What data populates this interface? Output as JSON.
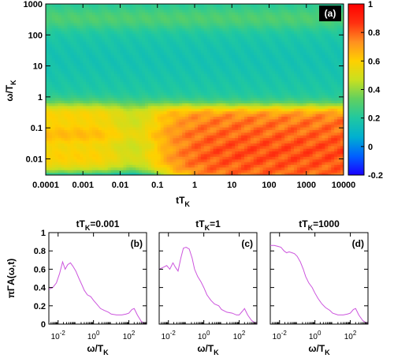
{
  "chart_data": [
    {
      "type": "heatmap",
      "panel_label": "(a)",
      "xlabel_main": "tT",
      "xlabel_sub": "K",
      "ylabel_main": "ω/T",
      "ylabel_sub": "K",
      "x_scale": "log",
      "y_scale": "log",
      "xlim": [
        0.0001,
        10000
      ],
      "ylim": [
        0.003,
        1000
      ],
      "x_ticks": [
        "0.0001",
        "0.001",
        "0.01",
        "0.1",
        "1",
        "10",
        "100",
        "1000",
        "10000"
      ],
      "y_ticks": [
        "0.01",
        "0.1",
        "1",
        "10",
        "100",
        "1000"
      ],
      "colorbar": {
        "range": [
          -0.2,
          1
        ],
        "ticks": [
          "-0.2",
          "0",
          "0.2",
          "0.4",
          "0.6",
          "0.8",
          "1"
        ],
        "colors": [
          "#1a00ff",
          "#0060ff",
          "#00b0d0",
          "#20c8a0",
          "#60d060",
          "#c8e020",
          "#ffd000",
          "#ff9020",
          "#ff3010",
          "#ff0000"
        ]
      }
    },
    {
      "type": "line",
      "title_main": "tT",
      "title_sub": "K",
      "title_value": "=0.001",
      "panel_label": "(b)",
      "ylabel": "πΓA(ω,t)",
      "xlabel_main": "ω/T",
      "xlabel_sub": "K",
      "x_scale": "log",
      "xlim": [
        0.003,
        1000
      ],
      "ylim": [
        0,
        1
      ],
      "y_ticks": [
        "0",
        "0.2",
        "0.4",
        "0.6",
        "0.8",
        "1"
      ],
      "x_ticks": [
        {
          "base": "10",
          "exp": "-2"
        },
        {
          "base": "10",
          "exp": "0"
        },
        {
          "base": "10",
          "exp": "2"
        }
      ],
      "line_color": "#cc55dd",
      "x": [
        0.003,
        0.005,
        0.008,
        0.012,
        0.018,
        0.025,
        0.035,
        0.05,
        0.07,
        0.1,
        0.15,
        0.22,
        0.3,
        0.45,
        0.7,
        1,
        1.5,
        2.5,
        4,
        7,
        10,
        20,
        40,
        70,
        100,
        150,
        200,
        300,
        500,
        700,
        1000
      ],
      "y": [
        0.38,
        0.4,
        0.45,
        0.55,
        0.68,
        0.6,
        0.65,
        0.67,
        0.63,
        0.58,
        0.5,
        0.43,
        0.37,
        0.32,
        0.3,
        0.26,
        0.22,
        0.17,
        0.15,
        0.13,
        0.11,
        0.1,
        0.1,
        0.11,
        0.12,
        0.16,
        0.17,
        0.1,
        0.03,
        0.01,
        0.0
      ]
    },
    {
      "type": "line",
      "title_main": "tT",
      "title_sub": "K",
      "title_value": "=1",
      "panel_label": "(c)",
      "xlabel_main": "ω/T",
      "xlabel_sub": "K",
      "x_scale": "log",
      "xlim": [
        0.003,
        1000
      ],
      "ylim": [
        0,
        1
      ],
      "x_ticks": [
        {
          "base": "10",
          "exp": "-2"
        },
        {
          "base": "10",
          "exp": "0"
        },
        {
          "base": "10",
          "exp": "2"
        }
      ],
      "line_color": "#cc55dd",
      "x": [
        0.003,
        0.005,
        0.008,
        0.012,
        0.018,
        0.025,
        0.035,
        0.05,
        0.07,
        0.1,
        0.15,
        0.22,
        0.3,
        0.45,
        0.7,
        1,
        1.5,
        2.5,
        4,
        7,
        10,
        20,
        40,
        70,
        100,
        150,
        200,
        300,
        500,
        700,
        1000
      ],
      "y": [
        0.6,
        0.62,
        0.64,
        0.6,
        0.67,
        0.62,
        0.58,
        0.72,
        0.83,
        0.84,
        0.82,
        0.72,
        0.6,
        0.52,
        0.46,
        0.4,
        0.32,
        0.26,
        0.22,
        0.2,
        0.16,
        0.13,
        0.12,
        0.1,
        0.1,
        0.14,
        0.17,
        0.1,
        0.04,
        0.02,
        0.01
      ]
    },
    {
      "type": "line",
      "title_main": "tT",
      "title_sub": "K",
      "title_value": "=1000",
      "panel_label": "(d)",
      "xlabel_main": "ω/T",
      "xlabel_sub": "K",
      "x_scale": "log",
      "xlim": [
        0.003,
        1000
      ],
      "ylim": [
        0,
        1
      ],
      "x_ticks": [
        {
          "base": "10",
          "exp": "-2"
        },
        {
          "base": "10",
          "exp": "0"
        },
        {
          "base": "10",
          "exp": "2"
        }
      ],
      "line_color": "#cc55dd",
      "x": [
        0.003,
        0.005,
        0.008,
        0.012,
        0.018,
        0.025,
        0.035,
        0.05,
        0.07,
        0.1,
        0.15,
        0.22,
        0.3,
        0.45,
        0.7,
        1,
        1.5,
        2.5,
        4,
        7,
        10,
        20,
        40,
        70,
        100,
        150,
        200,
        300,
        500,
        700,
        1000
      ],
      "y": [
        0.86,
        0.86,
        0.85,
        0.84,
        0.8,
        0.78,
        0.79,
        0.78,
        0.77,
        0.74,
        0.68,
        0.6,
        0.52,
        0.45,
        0.4,
        0.34,
        0.28,
        0.22,
        0.18,
        0.15,
        0.12,
        0.1,
        0.1,
        0.11,
        0.12,
        0.16,
        0.17,
        0.1,
        0.04,
        0.02,
        0.01
      ]
    }
  ]
}
